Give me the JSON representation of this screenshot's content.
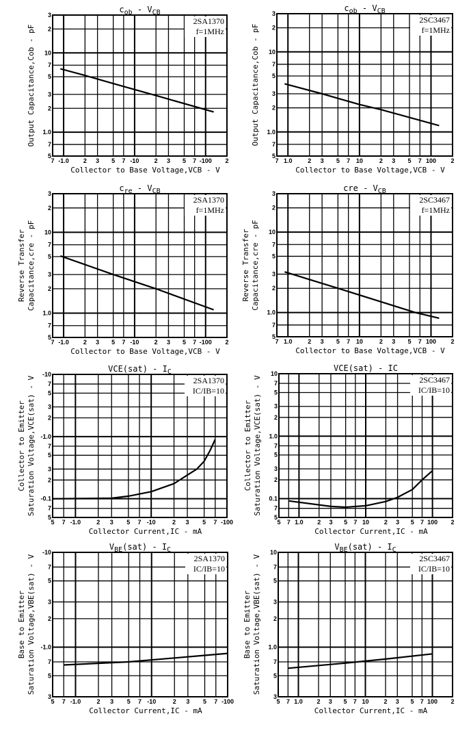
{
  "chart_data": [
    {
      "type": "line",
      "scale": "log-log",
      "title_parts": [
        [
          "c",
          false
        ],
        [
          "ob",
          true
        ],
        [
          " - V",
          false
        ],
        [
          "CB",
          true
        ]
      ],
      "device": "2SA1370",
      "condition": "f=1MHz",
      "xlabel": "Collector to Base Voltage,VCB - V",
      "ylabel": [
        "Output Capacitance,Cob - pF"
      ],
      "xlim": [
        0.7,
        200
      ],
      "ylim": [
        0.5,
        30
      ],
      "x_ticks": [
        [
          0.7,
          "7"
        ],
        [
          1,
          "-1.0"
        ],
        [
          2,
          "2"
        ],
        [
          3,
          "3"
        ],
        [
          5,
          "5"
        ],
        [
          7,
          "7"
        ],
        [
          10,
          "-10"
        ],
        [
          20,
          "2"
        ],
        [
          30,
          "3"
        ],
        [
          50,
          "5"
        ],
        [
          70,
          "7"
        ],
        [
          100,
          "-100"
        ],
        [
          200,
          "2"
        ]
      ],
      "y_ticks": [
        [
          0.5,
          "5"
        ],
        [
          0.7,
          "7"
        ],
        [
          1,
          "1.0"
        ],
        [
          2,
          "2"
        ],
        [
          3,
          "3"
        ],
        [
          5,
          "5"
        ],
        [
          7,
          "7"
        ],
        [
          10,
          "10"
        ],
        [
          20,
          "2"
        ],
        [
          30,
          "3"
        ]
      ],
      "series": [
        {
          "name": "Cob",
          "x": [
            0.9,
            2,
            5,
            20,
            130
          ],
          "y": [
            6.3,
            5.2,
            4.1,
            2.9,
            1.8
          ]
        }
      ]
    },
    {
      "type": "line",
      "scale": "log-log",
      "title_parts": [
        [
          "c",
          false
        ],
        [
          "ob",
          true
        ],
        [
          " - V",
          false
        ],
        [
          "CB",
          true
        ]
      ],
      "device": "2SC3467",
      "condition": "f=1MHz",
      "xlabel": "Collector to Base Voltage,VCB - V",
      "ylabel": [
        "Output Capacitance,Cob - pF"
      ],
      "xlim": [
        0.7,
        200
      ],
      "ylim": [
        0.5,
        30
      ],
      "x_ticks": [
        [
          0.7,
          "7"
        ],
        [
          1,
          "1.0"
        ],
        [
          2,
          "2"
        ],
        [
          3,
          "3"
        ],
        [
          5,
          "5"
        ],
        [
          7,
          "7"
        ],
        [
          10,
          "10"
        ],
        [
          20,
          "2"
        ],
        [
          30,
          "3"
        ],
        [
          50,
          "5"
        ],
        [
          70,
          "7"
        ],
        [
          100,
          "100"
        ],
        [
          200,
          "2"
        ]
      ],
      "y_ticks": [
        [
          0.5,
          "5"
        ],
        [
          0.7,
          "7"
        ],
        [
          1,
          "1.0"
        ],
        [
          2,
          "2"
        ],
        [
          3,
          "3"
        ],
        [
          5,
          "5"
        ],
        [
          7,
          "7"
        ],
        [
          10,
          "10"
        ],
        [
          20,
          "2"
        ],
        [
          30,
          "3"
        ]
      ],
      "series": [
        {
          "name": "Cob",
          "x": [
            0.9,
            3,
            10,
            20,
            130
          ],
          "y": [
            4.0,
            3.0,
            2.2,
            1.9,
            1.2
          ]
        }
      ]
    },
    {
      "type": "line",
      "scale": "log-log",
      "title_parts": [
        [
          "c",
          false
        ],
        [
          "re",
          true
        ],
        [
          " - V",
          false
        ],
        [
          "CB",
          true
        ]
      ],
      "device": "2SA1370",
      "condition": "f=1MHz",
      "xlabel": "Collector to Base Voltage,VCB - V",
      "ylabel": [
        "Reverse Transfer",
        "Capacitance,cre - pF"
      ],
      "xlim": [
        0.7,
        200
      ],
      "ylim": [
        0.5,
        30
      ],
      "x_ticks": [
        [
          0.7,
          "7"
        ],
        [
          1,
          "-1.0"
        ],
        [
          2,
          "2"
        ],
        [
          3,
          "3"
        ],
        [
          5,
          "5"
        ],
        [
          7,
          "7"
        ],
        [
          10,
          "-10"
        ],
        [
          20,
          "2"
        ],
        [
          30,
          "3"
        ],
        [
          50,
          "5"
        ],
        [
          70,
          "7"
        ],
        [
          100,
          "-100"
        ],
        [
          200,
          "2"
        ]
      ],
      "y_ticks": [
        [
          0.5,
          "5"
        ],
        [
          0.7,
          "7"
        ],
        [
          1,
          "1.0"
        ],
        [
          2,
          "2"
        ],
        [
          3,
          "3"
        ],
        [
          5,
          "5"
        ],
        [
          7,
          "7"
        ],
        [
          10,
          "10"
        ],
        [
          20,
          "2"
        ],
        [
          30,
          "3"
        ]
      ],
      "series": [
        {
          "name": "Cre",
          "x": [
            0.9,
            5,
            20,
            130
          ],
          "y": [
            5.1,
            3.0,
            2.0,
            1.1
          ]
        }
      ]
    },
    {
      "type": "line",
      "scale": "log-log",
      "title_parts": [
        [
          "cre",
          false
        ],
        [
          " - V",
          false
        ],
        [
          "CB",
          true
        ]
      ],
      "device": "2SC3467",
      "condition": "f=1MHz",
      "xlabel": "Collector to Base Voltage,VCB - V",
      "ylabel": [
        "Reverse Transfer",
        "Capacitance,cre - pF"
      ],
      "xlim": [
        0.7,
        200
      ],
      "ylim": [
        0.5,
        30
      ],
      "x_ticks": [
        [
          0.7,
          "7"
        ],
        [
          1,
          "1.0"
        ],
        [
          2,
          "2"
        ],
        [
          3,
          "3"
        ],
        [
          5,
          "5"
        ],
        [
          7,
          "7"
        ],
        [
          10,
          "10"
        ],
        [
          20,
          "2"
        ],
        [
          30,
          "3"
        ],
        [
          50,
          "5"
        ],
        [
          70,
          "7"
        ],
        [
          100,
          "100"
        ],
        [
          200,
          "2"
        ]
      ],
      "y_ticks": [
        [
          0.5,
          "5"
        ],
        [
          0.7,
          "7"
        ],
        [
          1,
          "1.0"
        ],
        [
          2,
          "2"
        ],
        [
          3,
          "3"
        ],
        [
          5,
          "5"
        ],
        [
          7,
          "7"
        ],
        [
          10,
          "10"
        ],
        [
          20,
          "2"
        ],
        [
          30,
          "3"
        ]
      ],
      "series": [
        {
          "name": "Cre",
          "x": [
            0.9,
            5,
            60,
            130
          ],
          "y": [
            3.2,
            2.0,
            1.0,
            0.85
          ]
        }
      ]
    },
    {
      "type": "line",
      "scale": "log-log",
      "title_parts": [
        [
          "VCE(sat) - I",
          false
        ],
        [
          "C",
          true
        ]
      ],
      "device": "2SA1370",
      "condition": "IC/IB=10",
      "xlabel": "Collector Current,IC - mA",
      "ylabel": [
        "Collector to Emitter",
        "Saturation Voltage,VCE(sat) - V"
      ],
      "xlim": [
        0.5,
        100
      ],
      "ylim": [
        0.05,
        10
      ],
      "x_ticks": [
        [
          0.5,
          "5"
        ],
        [
          0.7,
          "7"
        ],
        [
          1,
          "-1.0"
        ],
        [
          2,
          "2"
        ],
        [
          3,
          "3"
        ],
        [
          5,
          "5"
        ],
        [
          7,
          "7"
        ],
        [
          10,
          "-10"
        ],
        [
          20,
          "2"
        ],
        [
          30,
          "3"
        ],
        [
          50,
          "5"
        ],
        [
          70,
          "7"
        ],
        [
          100,
          "-100"
        ]
      ],
      "y_ticks": [
        [
          0.05,
          "5"
        ],
        [
          0.07,
          "7"
        ],
        [
          0.1,
          "-0.1"
        ],
        [
          0.2,
          "2"
        ],
        [
          0.3,
          "3"
        ],
        [
          0.5,
          "5"
        ],
        [
          0.7,
          "7"
        ],
        [
          1,
          "-1.0"
        ],
        [
          2,
          "2"
        ],
        [
          3,
          "3"
        ],
        [
          5,
          "5"
        ],
        [
          7,
          "7"
        ],
        [
          10,
          "-10"
        ]
      ],
      "series": [
        {
          "name": "VCE(sat)",
          "x": [
            0.5,
            3,
            5,
            10,
            20,
            30,
            40,
            50,
            60,
            70
          ],
          "y": [
            0.1,
            0.102,
            0.11,
            0.13,
            0.175,
            0.24,
            0.3,
            0.4,
            0.6,
            0.9
          ]
        }
      ]
    },
    {
      "type": "line",
      "scale": "log-log",
      "title_parts": [
        [
          "VCE(sat) - IC",
          false
        ]
      ],
      "device": "2SC3467",
      "condition": "IC/IB=10",
      "xlabel": "Collector Current,IC - mA",
      "ylabel": [
        "Collector to Emitter",
        "Saturation Voltage,VCE(sat) - V"
      ],
      "xlim": [
        0.5,
        200
      ],
      "ylim": [
        0.05,
        10
      ],
      "x_ticks": [
        [
          0.5,
          "5"
        ],
        [
          0.7,
          "7"
        ],
        [
          1,
          "1.0"
        ],
        [
          2,
          "2"
        ],
        [
          3,
          "3"
        ],
        [
          5,
          "5"
        ],
        [
          7,
          "7"
        ],
        [
          10,
          "10"
        ],
        [
          20,
          "2"
        ],
        [
          30,
          "3"
        ],
        [
          50,
          "5"
        ],
        [
          70,
          "7"
        ],
        [
          100,
          "100"
        ],
        [
          200,
          "2"
        ]
      ],
      "y_ticks": [
        [
          0.05,
          "5"
        ],
        [
          0.07,
          "7"
        ],
        [
          0.1,
          "0.1"
        ],
        [
          0.2,
          "2"
        ],
        [
          0.3,
          "3"
        ],
        [
          0.5,
          "5"
        ],
        [
          0.7,
          "7"
        ],
        [
          1,
          "1.0"
        ],
        [
          2,
          "2"
        ],
        [
          3,
          "3"
        ],
        [
          5,
          "5"
        ],
        [
          7,
          "7"
        ],
        [
          10,
          "10"
        ]
      ],
      "series": [
        {
          "name": "VCE(sat)",
          "x": [
            0.7,
            3,
            5,
            10,
            20,
            30,
            50,
            70,
            100
          ],
          "y": [
            0.092,
            0.075,
            0.073,
            0.077,
            0.09,
            0.105,
            0.14,
            0.2,
            0.28
          ]
        }
      ]
    },
    {
      "type": "line",
      "scale": "log-log",
      "title_parts": [
        [
          "V",
          false
        ],
        [
          "BE",
          true
        ],
        [
          "(sat) - I",
          false
        ],
        [
          "C",
          true
        ]
      ],
      "device": "2SA1370",
      "condition": "IC/IB=10",
      "xlabel": "Collector Current,IC - mA",
      "ylabel": [
        "Base to Emitter",
        "Saturation Voltage,VBE(sat) - V"
      ],
      "xlim": [
        0.5,
        100
      ],
      "ylim": [
        0.3,
        10
      ],
      "x_ticks": [
        [
          0.5,
          "5"
        ],
        [
          0.7,
          "7"
        ],
        [
          1,
          "-1.0"
        ],
        [
          2,
          "2"
        ],
        [
          3,
          "3"
        ],
        [
          5,
          "5"
        ],
        [
          7,
          "7"
        ],
        [
          10,
          "-10"
        ],
        [
          20,
          "2"
        ],
        [
          30,
          "3"
        ],
        [
          50,
          "5"
        ],
        [
          70,
          "7"
        ],
        [
          100,
          "-100"
        ]
      ],
      "y_ticks": [
        [
          0.3,
          "3"
        ],
        [
          0.5,
          "5"
        ],
        [
          0.7,
          "7"
        ],
        [
          1,
          "-1.0"
        ],
        [
          2,
          "2"
        ],
        [
          3,
          "3"
        ],
        [
          5,
          "5"
        ],
        [
          7,
          "7"
        ],
        [
          10,
          "-10"
        ]
      ],
      "series": [
        {
          "name": "VBE(sat)",
          "x": [
            0.7,
            5,
            20,
            50,
            100
          ],
          "y": [
            0.65,
            0.7,
            0.77,
            0.82,
            0.86
          ]
        }
      ]
    },
    {
      "type": "line",
      "scale": "log-log",
      "title_parts": [
        [
          "V",
          false
        ],
        [
          "BE",
          true
        ],
        [
          "(sat) - I",
          false
        ],
        [
          "C",
          true
        ]
      ],
      "device": "2SC3467",
      "condition": "IC/IB=10",
      "xlabel": "Collector Current,IC - mA",
      "ylabel": [
        "Base to Emitter",
        "Saturation Voltage,VBE(sat) - V"
      ],
      "xlim": [
        0.5,
        200
      ],
      "ylim": [
        0.3,
        10
      ],
      "x_ticks": [
        [
          0.5,
          "5"
        ],
        [
          0.7,
          "7"
        ],
        [
          1,
          "1.0"
        ],
        [
          2,
          "2"
        ],
        [
          3,
          "3"
        ],
        [
          5,
          "5"
        ],
        [
          7,
          "7"
        ],
        [
          10,
          "10"
        ],
        [
          20,
          "2"
        ],
        [
          30,
          "3"
        ],
        [
          50,
          "5"
        ],
        [
          70,
          "7"
        ],
        [
          100,
          "100"
        ],
        [
          200,
          "2"
        ]
      ],
      "y_ticks": [
        [
          0.3,
          "3"
        ],
        [
          0.5,
          "5"
        ],
        [
          0.7,
          "7"
        ],
        [
          1,
          "1.0"
        ],
        [
          2,
          "2"
        ],
        [
          3,
          "3"
        ],
        [
          5,
          "5"
        ],
        [
          7,
          "7"
        ],
        [
          10,
          "10"
        ]
      ],
      "series": [
        {
          "name": "VBE(sat)",
          "x": [
            0.7,
            5,
            20,
            100
          ],
          "y": [
            0.6,
            0.68,
            0.75,
            0.85
          ]
        }
      ]
    }
  ]
}
